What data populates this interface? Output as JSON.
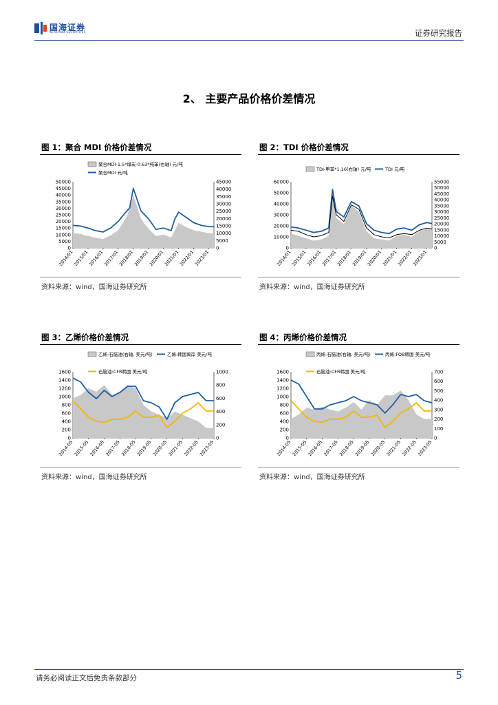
{
  "header": {
    "logo_cn": "国海证券",
    "logo_en": "SEALAND SECURITIES",
    "report_type": "证券研究报告"
  },
  "section_title": "2、 主要产品价格价差情况",
  "figures": [
    {
      "title": "图 1：聚合 MDI 价格价差情况",
      "source": "资料来源：wind，国海证券研究所"
    },
    {
      "title": "图 2：TDI 价格价差情况",
      "source": "资料来源：wind，国海证券研究所"
    },
    {
      "title": "图 3：乙烯价格价差情况",
      "source": "资料来源：wind，国海证券研究所"
    },
    {
      "title": "图 4：丙烯价格价差情况",
      "source": "资料来源：wind，国海证券研究所"
    }
  ],
  "footer": {
    "disclaimer": "请务必阅读正文后免责条款部分",
    "page_number": "5"
  },
  "colors": {
    "brand": "#1f4e9a",
    "line_blue": "#1f5fa0",
    "line_yellow": "#f5b700",
    "area_gray": "#c8c8c8",
    "line_black": "#000000"
  },
  "chart_data": [
    {
      "type": "area",
      "legend": [
        "聚合MDI-1.5*煤炭-0.63*纯苯(右轴) 元/吨",
        "聚合MDI 元/吨"
      ],
      "xticks": [
        "2014/01",
        "2015/01",
        "2016/01",
        "2017/01",
        "2018/01",
        "2019/01",
        "2020/01",
        "2021/01",
        "2022/01",
        "2023/01"
      ],
      "ylim_left": [
        0,
        50000
      ],
      "yticks_left": [
        0,
        5000,
        10000,
        15000,
        20000,
        25000,
        30000,
        35000,
        40000,
        45000,
        50000
      ],
      "ylim_right": [
        0,
        45000
      ],
      "yticks_right": [
        0,
        5000,
        10000,
        15000,
        20000,
        25000,
        30000,
        35000,
        40000,
        45000
      ],
      "x": [
        "2014/01",
        "2014/07",
        "2015/01",
        "2015/07",
        "2016/01",
        "2016/07",
        "2017/01",
        "2017/07",
        "2017/10",
        "2018/01",
        "2018/07",
        "2019/01",
        "2019/07",
        "2020/01",
        "2020/07",
        "2020/10",
        "2021/01",
        "2021/07",
        "2022/01",
        "2022/07",
        "2023/01",
        "2023/05"
      ],
      "series": [
        {
          "name": "聚合MDI-1.5*煤炭-0.63*纯苯(右轴) 元/吨",
          "axis": "right",
          "kind": "area",
          "values": [
            10000,
            9500,
            8000,
            7000,
            6000,
            8500,
            12000,
            20000,
            26000,
            36000,
            20000,
            13000,
            8000,
            9000,
            7000,
            12000,
            17000,
            14000,
            12000,
            11000,
            10000,
            10000
          ]
        },
        {
          "name": "聚合MDI 元/吨",
          "axis": "left",
          "kind": "line",
          "values": [
            17000,
            16500,
            15000,
            13000,
            12000,
            15000,
            20000,
            27000,
            30000,
            45000,
            28000,
            22000,
            14000,
            15000,
            13000,
            22000,
            27000,
            23000,
            19000,
            17000,
            16000,
            16000
          ]
        }
      ]
    },
    {
      "type": "area",
      "legend": [
        "TDI-甲苯*1.16(右轴) 元/吨",
        "TDI 元/吨"
      ],
      "xticks": [
        "2014/01",
        "2015/01",
        "2016/01",
        "2017/01",
        "2018/01",
        "2019/01",
        "2020/01",
        "2021/01",
        "2022/01",
        "2023/01"
      ],
      "ylim_left": [
        0,
        60000
      ],
      "yticks_left": [
        0,
        10000,
        20000,
        30000,
        40000,
        50000,
        60000
      ],
      "ylim_right": [
        0,
        55000
      ],
      "yticks_right": [
        0,
        5000,
        10000,
        15000,
        20000,
        25000,
        30000,
        35000,
        40000,
        45000,
        50000,
        55000
      ],
      "x": [
        "2014/01",
        "2014/07",
        "2015/01",
        "2015/07",
        "2016/01",
        "2016/07",
        "2016/10",
        "2017/01",
        "2017/07",
        "2018/01",
        "2018/07",
        "2019/01",
        "2019/07",
        "2020/01",
        "2020/07",
        "2021/01",
        "2021/07",
        "2022/01",
        "2022/07",
        "2023/01",
        "2023/05"
      ],
      "series": [
        {
          "name": "TDI-甲苯*1.16(右轴) 元/吨",
          "axis": "right",
          "kind": "area",
          "values": [
            12000,
            10000,
            8000,
            6000,
            7000,
            10000,
            45000,
            25000,
            20000,
            35000,
            30000,
            14000,
            8000,
            7000,
            6000,
            10000,
            11000,
            9000,
            14000,
            16000,
            15000
          ]
        },
        {
          "name": "TDI 元/吨",
          "axis": "left",
          "kind": "line",
          "values": [
            19000,
            18000,
            16000,
            14000,
            15000,
            18000,
            53000,
            33000,
            28000,
            42000,
            38000,
            22000,
            16000,
            14000,
            13000,
            17000,
            18000,
            16000,
            21000,
            23000,
            22000
          ]
        },
        {
          "name": "black",
          "axis": "left",
          "kind": "line",
          "values": [
            16000,
            15000,
            12000,
            10000,
            11000,
            14000,
            47000,
            30000,
            24000,
            39000,
            35000,
            18000,
            12000,
            10000,
            9000,
            12000,
            13000,
            12000,
            16000,
            18000,
            17000
          ]
        }
      ]
    },
    {
      "type": "area",
      "legend": [
        "乙烯-石脑油(右轴, 美元/吨)",
        "乙烯:韩国离岸 美元/吨",
        "石脑油:CFR韩国 美元/吨"
      ],
      "xticks": [
        "2014-05",
        "2015-05",
        "2016-05",
        "2017-05",
        "2018-05",
        "2019-05",
        "2020-05",
        "2021-05",
        "2022-05",
        "2023-05"
      ],
      "ylim_left": [
        0,
        1600
      ],
      "yticks_left": [
        0,
        200,
        400,
        600,
        800,
        1000,
        1200,
        1400,
        1600
      ],
      "ylim_right": [
        0,
        1000
      ],
      "yticks_right": [
        0,
        200,
        400,
        600,
        800,
        1000
      ],
      "x": [
        "2014-05",
        "2014-11",
        "2015-05",
        "2015-11",
        "2016-05",
        "2016-11",
        "2017-05",
        "2017-11",
        "2018-05",
        "2018-11",
        "2019-05",
        "2019-11",
        "2020-05",
        "2020-11",
        "2021-05",
        "2021-11",
        "2022-05",
        "2022-11",
        "2023-05"
      ],
      "series": [
        {
          "name": "乙烯-石脑油(右轴, 美元/吨)",
          "axis": "right",
          "kind": "area",
          "values": [
            600,
            650,
            750,
            700,
            800,
            650,
            700,
            800,
            750,
            500,
            400,
            350,
            300,
            400,
            350,
            300,
            250,
            150,
            150
          ]
        },
        {
          "name": "乙烯:韩国离岸 美元/吨",
          "axis": "left",
          "kind": "line",
          "values": [
            1450,
            1350,
            1100,
            950,
            1150,
            1000,
            1100,
            1250,
            1250,
            900,
            850,
            750,
            450,
            850,
            1000,
            1050,
            1100,
            900,
            900
          ]
        },
        {
          "name": "石脑油:CFR韩国 美元/吨",
          "axis": "left",
          "kind": "line",
          "values": [
            900,
            700,
            500,
            400,
            380,
            450,
            450,
            500,
            650,
            500,
            500,
            550,
            250,
            400,
            600,
            700,
            850,
            650,
            650
          ]
        }
      ]
    },
    {
      "type": "area",
      "legend": [
        "丙烯-石脑油(右轴, 美元/吨)",
        "丙烯:FOB韩国 美元/吨",
        "石脑油:CFR韩国 美元/吨"
      ],
      "xticks": [
        "2014-05",
        "2015-05",
        "2016-05",
        "2017-05",
        "2018-05",
        "2019-05",
        "2020-05",
        "2021-05",
        "2022-05",
        "2023-05"
      ],
      "ylim_left": [
        0,
        1600
      ],
      "yticks_left": [
        0,
        200,
        400,
        600,
        800,
        1000,
        1200,
        1400,
        1600
      ],
      "ylim_right": [
        0,
        700
      ],
      "yticks_right": [
        0,
        100,
        200,
        300,
        400,
        500,
        600,
        700
      ],
      "x": [
        "2014-05",
        "2014-11",
        "2015-05",
        "2015-11",
        "2016-05",
        "2016-11",
        "2017-05",
        "2017-11",
        "2018-05",
        "2018-11",
        "2019-05",
        "2019-11",
        "2020-05",
        "2020-11",
        "2021-05",
        "2021-11",
        "2022-05",
        "2022-11",
        "2023-05"
      ],
      "series": [
        {
          "name": "丙烯-石脑油(右轴, 美元/吨)",
          "axis": "right",
          "kind": "area",
          "values": [
            200,
            250,
            320,
            300,
            330,
            300,
            280,
            320,
            380,
            300,
            400,
            350,
            450,
            450,
            500,
            400,
            250,
            200,
            200
          ]
        },
        {
          "name": "丙烯:FOB韩国 美元/吨",
          "axis": "left",
          "kind": "line",
          "values": [
            1400,
            1300,
            1000,
            700,
            700,
            800,
            850,
            900,
            1000,
            900,
            850,
            800,
            600,
            800,
            1050,
            1000,
            1050,
            900,
            850
          ]
        },
        {
          "name": "石脑油:CFR韩国 美元/吨",
          "axis": "left",
          "kind": "line",
          "values": [
            900,
            700,
            500,
            400,
            380,
            450,
            450,
            500,
            650,
            500,
            500,
            550,
            250,
            400,
            600,
            700,
            850,
            650,
            650
          ]
        }
      ]
    }
  ]
}
